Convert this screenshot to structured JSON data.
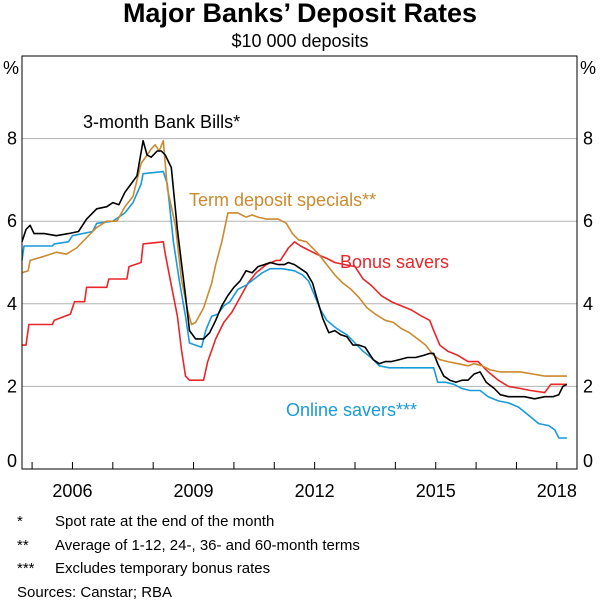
{
  "chart_data": {
    "type": "line",
    "title": "Major Banks’ Deposit Rates",
    "subtitle": "$10 000 deposits",
    "ylabel_left": "%",
    "ylabel_right": "%",
    "ylim": [
      0,
      10
    ],
    "yticks": [
      0,
      2,
      4,
      6,
      8
    ],
    "xlim": [
      2004.75,
      2018.5
    ],
    "xticks": [
      2006,
      2009,
      2012,
      2015,
      2018
    ],
    "series": [
      {
        "name": "3-month Bank Bills*",
        "color": "#000000",
        "points": [
          [
            2004.75,
            5.5
          ],
          [
            2004.85,
            5.8
          ],
          [
            2004.95,
            5.9
          ],
          [
            2005.05,
            5.7
          ],
          [
            2005.3,
            5.7
          ],
          [
            2005.6,
            5.65
          ],
          [
            2005.9,
            5.7
          ],
          [
            2006.15,
            5.75
          ],
          [
            2006.35,
            6.05
          ],
          [
            2006.6,
            6.3
          ],
          [
            2006.85,
            6.35
          ],
          [
            2007.0,
            6.45
          ],
          [
            2007.15,
            6.4
          ],
          [
            2007.3,
            6.7
          ],
          [
            2007.45,
            6.9
          ],
          [
            2007.6,
            7.1
          ],
          [
            2007.75,
            7.95
          ],
          [
            2007.85,
            7.6
          ],
          [
            2007.95,
            7.55
          ],
          [
            2008.1,
            7.7
          ],
          [
            2008.2,
            7.7
          ],
          [
            2008.3,
            7.6
          ],
          [
            2008.45,
            7.3
          ],
          [
            2008.6,
            5.8
          ],
          [
            2008.7,
            5.0
          ],
          [
            2008.8,
            4.2
          ],
          [
            2008.9,
            3.35
          ],
          [
            2009.05,
            3.15
          ],
          [
            2009.25,
            3.15
          ],
          [
            2009.4,
            3.3
          ],
          [
            2009.55,
            3.6
          ],
          [
            2009.7,
            3.95
          ],
          [
            2009.85,
            4.2
          ],
          [
            2010.0,
            4.4
          ],
          [
            2010.15,
            4.55
          ],
          [
            2010.3,
            4.8
          ],
          [
            2010.45,
            4.75
          ],
          [
            2010.6,
            4.9
          ],
          [
            2010.75,
            4.95
          ],
          [
            2010.9,
            5.0
          ],
          [
            2011.1,
            4.95
          ],
          [
            2011.25,
            4.95
          ],
          [
            2011.35,
            5.0
          ],
          [
            2011.5,
            4.95
          ],
          [
            2011.65,
            4.85
          ],
          [
            2011.8,
            4.75
          ],
          [
            2011.95,
            4.5
          ],
          [
            2012.05,
            4.15
          ],
          [
            2012.2,
            3.65
          ],
          [
            2012.35,
            3.3
          ],
          [
            2012.5,
            3.35
          ],
          [
            2012.65,
            3.25
          ],
          [
            2012.8,
            3.2
          ],
          [
            2012.95,
            3.0
          ],
          [
            2013.1,
            3.0
          ],
          [
            2013.25,
            2.95
          ],
          [
            2013.45,
            2.65
          ],
          [
            2013.6,
            2.55
          ],
          [
            2013.75,
            2.6
          ],
          [
            2013.9,
            2.6
          ],
          [
            2014.1,
            2.65
          ],
          [
            2014.3,
            2.7
          ],
          [
            2014.5,
            2.7
          ],
          [
            2014.7,
            2.75
          ],
          [
            2014.85,
            2.8
          ],
          [
            2014.95,
            2.8
          ],
          [
            2015.05,
            2.55
          ],
          [
            2015.2,
            2.25
          ],
          [
            2015.35,
            2.15
          ],
          [
            2015.5,
            2.1
          ],
          [
            2015.65,
            2.15
          ],
          [
            2015.8,
            2.15
          ],
          [
            2015.95,
            2.3
          ],
          [
            2016.1,
            2.35
          ],
          [
            2016.25,
            2.1
          ],
          [
            2016.45,
            1.95
          ],
          [
            2016.6,
            1.8
          ],
          [
            2016.8,
            1.75
          ],
          [
            2017.0,
            1.75
          ],
          [
            2017.2,
            1.75
          ],
          [
            2017.45,
            1.7
          ],
          [
            2017.7,
            1.75
          ],
          [
            2017.9,
            1.75
          ],
          [
            2018.05,
            1.8
          ],
          [
            2018.15,
            2.0
          ],
          [
            2018.25,
            2.05
          ]
        ]
      },
      {
        "name": "Term deposit specials**",
        "color": "#cc8a2e",
        "points": [
          [
            2004.75,
            4.75
          ],
          [
            2004.9,
            4.8
          ],
          [
            2004.95,
            5.05
          ],
          [
            2005.3,
            5.15
          ],
          [
            2005.6,
            5.25
          ],
          [
            2005.85,
            5.2
          ],
          [
            2006.1,
            5.35
          ],
          [
            2006.35,
            5.6
          ],
          [
            2006.6,
            5.85
          ],
          [
            2006.85,
            6.0
          ],
          [
            2007.1,
            6.0
          ],
          [
            2007.3,
            6.35
          ],
          [
            2007.5,
            6.6
          ],
          [
            2007.7,
            7.4
          ],
          [
            2007.85,
            7.6
          ],
          [
            2007.95,
            7.75
          ],
          [
            2008.05,
            7.85
          ],
          [
            2008.15,
            7.7
          ],
          [
            2008.25,
            7.95
          ],
          [
            2008.35,
            6.8
          ],
          [
            2008.55,
            5.9
          ],
          [
            2008.7,
            4.6
          ],
          [
            2008.85,
            3.85
          ],
          [
            2008.95,
            3.5
          ],
          [
            2009.05,
            3.55
          ],
          [
            2009.25,
            3.9
          ],
          [
            2009.45,
            4.5
          ],
          [
            2009.55,
            4.95
          ],
          [
            2009.7,
            5.5
          ],
          [
            2009.85,
            6.2
          ],
          [
            2010.1,
            6.2
          ],
          [
            2010.3,
            6.1
          ],
          [
            2010.45,
            6.15
          ],
          [
            2010.6,
            6.1
          ],
          [
            2010.8,
            6.05
          ],
          [
            2011.1,
            6.05
          ],
          [
            2011.3,
            5.95
          ],
          [
            2011.45,
            5.7
          ],
          [
            2011.6,
            5.55
          ],
          [
            2011.8,
            5.5
          ],
          [
            2011.95,
            5.35
          ],
          [
            2012.1,
            5.2
          ],
          [
            2012.3,
            4.95
          ],
          [
            2012.5,
            4.7
          ],
          [
            2012.7,
            4.5
          ],
          [
            2012.9,
            4.35
          ],
          [
            2013.1,
            4.15
          ],
          [
            2013.3,
            3.9
          ],
          [
            2013.5,
            3.75
          ],
          [
            2013.75,
            3.6
          ],
          [
            2013.95,
            3.55
          ],
          [
            2014.15,
            3.4
          ],
          [
            2014.35,
            3.3
          ],
          [
            2014.55,
            3.15
          ],
          [
            2014.75,
            3.0
          ],
          [
            2014.95,
            2.75
          ],
          [
            2015.1,
            2.65
          ],
          [
            2015.3,
            2.6
          ],
          [
            2015.55,
            2.55
          ],
          [
            2015.8,
            2.5
          ],
          [
            2015.95,
            2.55
          ],
          [
            2016.15,
            2.5
          ],
          [
            2016.35,
            2.4
          ],
          [
            2016.6,
            2.35
          ],
          [
            2016.85,
            2.35
          ],
          [
            2017.1,
            2.35
          ],
          [
            2017.4,
            2.3
          ],
          [
            2017.7,
            2.25
          ],
          [
            2017.9,
            2.25
          ],
          [
            2018.2,
            2.25
          ],
          [
            2018.25,
            2.25
          ]
        ]
      },
      {
        "name": "Bonus savers",
        "color": "#e8262b",
        "points": [
          [
            2004.75,
            3.0
          ],
          [
            2004.85,
            3.0
          ],
          [
            2004.92,
            3.5
          ],
          [
            2005.5,
            3.5
          ],
          [
            2005.55,
            3.6
          ],
          [
            2005.95,
            3.75
          ],
          [
            2006.05,
            4.05
          ],
          [
            2006.3,
            4.05
          ],
          [
            2006.35,
            4.4
          ],
          [
            2006.85,
            4.4
          ],
          [
            2006.9,
            4.6
          ],
          [
            2007.35,
            4.6
          ],
          [
            2007.4,
            4.9
          ],
          [
            2007.7,
            5.0
          ],
          [
            2007.75,
            5.45
          ],
          [
            2008.25,
            5.5
          ],
          [
            2008.3,
            5.2
          ],
          [
            2008.45,
            4.45
          ],
          [
            2008.6,
            3.7
          ],
          [
            2008.7,
            2.9
          ],
          [
            2008.8,
            2.25
          ],
          [
            2008.9,
            2.15
          ],
          [
            2009.25,
            2.15
          ],
          [
            2009.35,
            2.6
          ],
          [
            2009.55,
            3.15
          ],
          [
            2009.75,
            3.55
          ],
          [
            2009.95,
            3.8
          ],
          [
            2010.15,
            4.15
          ],
          [
            2010.35,
            4.5
          ],
          [
            2010.55,
            4.75
          ],
          [
            2010.8,
            4.95
          ],
          [
            2011.05,
            5.05
          ],
          [
            2011.15,
            5.05
          ],
          [
            2011.35,
            5.35
          ],
          [
            2011.5,
            5.5
          ],
          [
            2011.65,
            5.4
          ],
          [
            2011.85,
            5.3
          ],
          [
            2012.05,
            5.2
          ],
          [
            2012.3,
            5.1
          ],
          [
            2012.5,
            5.0
          ],
          [
            2012.75,
            4.95
          ],
          [
            2013.0,
            4.9
          ],
          [
            2013.2,
            4.6
          ],
          [
            2013.4,
            4.45
          ],
          [
            2013.65,
            4.2
          ],
          [
            2013.9,
            4.05
          ],
          [
            2014.15,
            3.95
          ],
          [
            2014.4,
            3.85
          ],
          [
            2014.65,
            3.7
          ],
          [
            2014.85,
            3.6
          ],
          [
            2014.95,
            3.35
          ],
          [
            2015.1,
            3.0
          ],
          [
            2015.3,
            2.85
          ],
          [
            2015.55,
            2.75
          ],
          [
            2015.8,
            2.6
          ],
          [
            2016.05,
            2.6
          ],
          [
            2016.3,
            2.35
          ],
          [
            2016.55,
            2.15
          ],
          [
            2016.8,
            2.0
          ],
          [
            2017.1,
            1.95
          ],
          [
            2017.35,
            1.9
          ],
          [
            2017.7,
            1.85
          ],
          [
            2017.85,
            2.05
          ],
          [
            2018.1,
            2.05
          ],
          [
            2018.25,
            2.05
          ]
        ]
      },
      {
        "name": "Online savers***",
        "color": "#1a9ad6",
        "points": [
          [
            2004.75,
            5.05
          ],
          [
            2004.8,
            5.4
          ],
          [
            2005.5,
            5.4
          ],
          [
            2005.55,
            5.45
          ],
          [
            2005.9,
            5.5
          ],
          [
            2006.0,
            5.65
          ],
          [
            2006.5,
            5.75
          ],
          [
            2006.6,
            5.95
          ],
          [
            2007.0,
            6.0
          ],
          [
            2007.3,
            6.2
          ],
          [
            2007.5,
            6.45
          ],
          [
            2007.7,
            6.9
          ],
          [
            2007.75,
            7.15
          ],
          [
            2008.25,
            7.2
          ],
          [
            2008.35,
            6.9
          ],
          [
            2008.5,
            5.5
          ],
          [
            2008.65,
            4.55
          ],
          [
            2008.8,
            3.7
          ],
          [
            2008.9,
            3.05
          ],
          [
            2009.2,
            2.95
          ],
          [
            2009.3,
            3.35
          ],
          [
            2009.45,
            3.7
          ],
          [
            2009.6,
            3.75
          ],
          [
            2009.75,
            3.95
          ],
          [
            2009.9,
            4.05
          ],
          [
            2010.1,
            4.35
          ],
          [
            2010.3,
            4.45
          ],
          [
            2010.5,
            4.6
          ],
          [
            2010.7,
            4.75
          ],
          [
            2010.9,
            4.85
          ],
          [
            2011.2,
            4.85
          ],
          [
            2011.5,
            4.8
          ],
          [
            2011.7,
            4.7
          ],
          [
            2011.85,
            4.55
          ],
          [
            2012.0,
            4.2
          ],
          [
            2012.15,
            3.85
          ],
          [
            2012.3,
            3.6
          ],
          [
            2012.55,
            3.4
          ],
          [
            2012.8,
            3.25
          ],
          [
            2013.0,
            3.05
          ],
          [
            2013.2,
            2.85
          ],
          [
            2013.4,
            2.7
          ],
          [
            2013.6,
            2.5
          ],
          [
            2013.85,
            2.45
          ],
          [
            2014.1,
            2.45
          ],
          [
            2014.3,
            2.45
          ],
          [
            2014.5,
            2.45
          ],
          [
            2014.75,
            2.45
          ],
          [
            2014.95,
            2.45
          ],
          [
            2015.05,
            2.1
          ],
          [
            2015.25,
            2.1
          ],
          [
            2015.45,
            2.05
          ],
          [
            2015.65,
            1.95
          ],
          [
            2015.85,
            1.9
          ],
          [
            2016.1,
            1.9
          ],
          [
            2016.3,
            1.75
          ],
          [
            2016.55,
            1.65
          ],
          [
            2016.8,
            1.6
          ],
          [
            2017.05,
            1.5
          ],
          [
            2017.3,
            1.3
          ],
          [
            2017.55,
            1.1
          ],
          [
            2017.8,
            1.05
          ],
          [
            2017.95,
            0.95
          ],
          [
            2018.05,
            0.75
          ],
          [
            2018.25,
            0.75
          ]
        ]
      }
    ],
    "labels": [
      {
        "text": "3-month Bank Bills*",
        "series": 0
      },
      {
        "text": "Term deposit specials**",
        "series": 1
      },
      {
        "text": "Bonus savers",
        "series": 2
      },
      {
        "text": "Online savers***",
        "series": 3
      }
    ]
  },
  "footnotes": [
    {
      "mark": "*",
      "text": "Spot rate at the end of the month"
    },
    {
      "mark": "**",
      "text": "Average of 1-12, 24-, 36- and 60-month terms"
    },
    {
      "mark": "***",
      "text": "Excludes temporary bonus rates"
    }
  ],
  "sources": "Sources: Canstar; RBA"
}
